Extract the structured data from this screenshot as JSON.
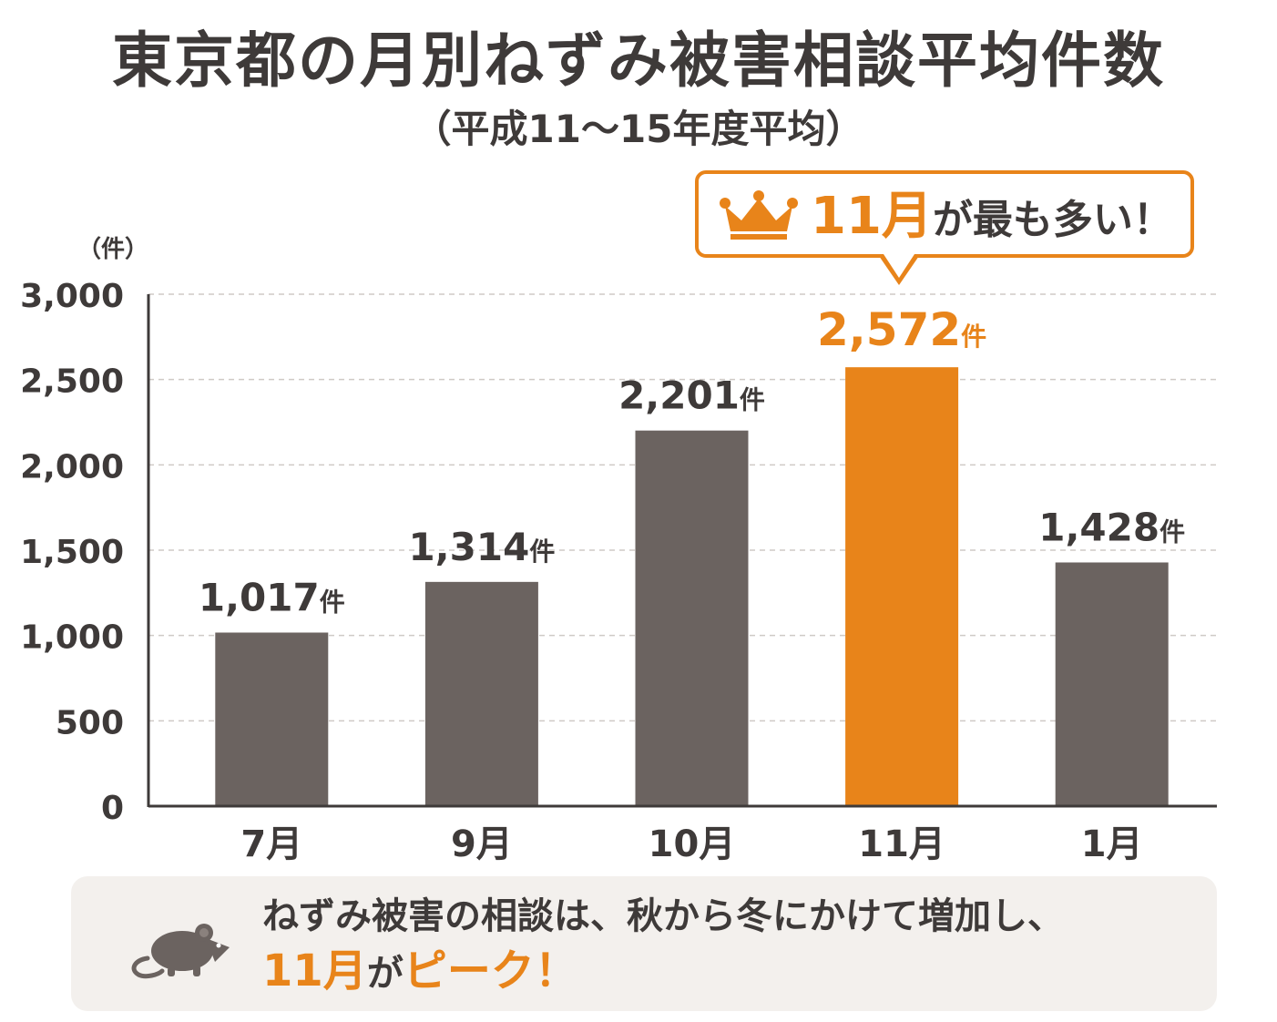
{
  "header": {
    "title": "東京都の月別ねずみ被害相談平均件数",
    "subtitle": "（平成11〜15年度平均）"
  },
  "callout": {
    "month": "11月",
    "text": "が最も多い！",
    "icon": "crown-icon"
  },
  "chart_data": {
    "type": "bar",
    "unit_label": "（件）",
    "categories": [
      "7月",
      "9月",
      "10月",
      "11月",
      "1月"
    ],
    "values": [
      1017,
      1314,
      2201,
      2572,
      1428
    ],
    "value_labels": [
      "1,017",
      "1,314",
      "2,201",
      "2,572",
      "1,428"
    ],
    "value_suffix": "件",
    "highlight_index": 3,
    "ylim": [
      0,
      3000
    ],
    "yticks": [
      0,
      500,
      1000,
      1500,
      2000,
      2500,
      3000
    ],
    "ytick_labels": [
      "0",
      "500",
      "1,000",
      "1,500",
      "2,000",
      "2,500",
      "3,000"
    ],
    "grid": true,
    "colors": {
      "bar": "#6b6360",
      "highlight": "#e8841a",
      "grid": "#cfcac6",
      "axis": "#3e3a39",
      "text": "#3e3a39"
    }
  },
  "footer": {
    "line1": "ねずみ被害の相談は、秋から冬にかけて増加し、",
    "line2_month": "11月",
    "line2_ga": "が",
    "line2_peak": "ピーク！",
    "icon": "mouse-icon"
  }
}
